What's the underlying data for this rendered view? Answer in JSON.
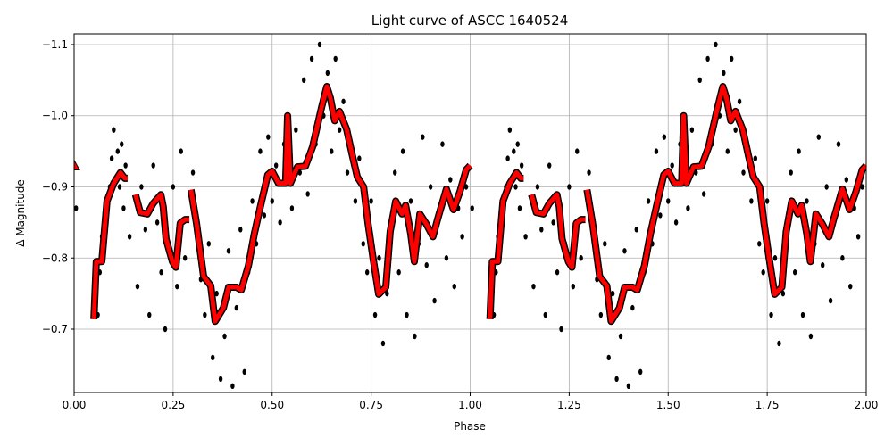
{
  "chart_data": {
    "type": "scatter",
    "title": "Light curve of ASCC 1640524",
    "xlabel": "Phase",
    "ylabel": "Δ Magnitude",
    "xlim": [
      0,
      2
    ],
    "ylim": [
      -1.115,
      -0.611
    ],
    "invert_y": true,
    "grid": true,
    "xticks": [
      {
        "value": 0,
        "label": "0.00"
      },
      {
        "value": 0.25,
        "label": "0.25"
      },
      {
        "value": 0.5,
        "label": "0.50"
      },
      {
        "value": 0.75,
        "label": "0.75"
      },
      {
        "value": 1,
        "label": "1.00"
      },
      {
        "value": 1.25,
        "label": "1.25"
      },
      {
        "value": 1.5,
        "label": "1.50"
      },
      {
        "value": 1.75,
        "label": "1.75"
      },
      {
        "value": 2,
        "label": "2.00"
      }
    ],
    "yticks": [
      {
        "value": -1.1,
        "label": "−1.1"
      },
      {
        "value": -1.0,
        "label": "−1.0"
      },
      {
        "value": -0.9,
        "label": "−0.9"
      },
      {
        "value": -0.8,
        "label": "−0.8"
      },
      {
        "value": -0.7,
        "label": "−0.7"
      }
    ],
    "points": {
      "color": "#000000",
      "x": [
        0.005,
        0.06,
        0.065,
        0.07,
        0.08,
        0.09,
        0.095,
        0.1,
        0.11,
        0.115,
        0.12,
        0.125,
        0.13,
        0.14,
        0.16,
        0.17,
        0.18,
        0.19,
        0.2,
        0.21,
        0.22,
        0.23,
        0.24,
        0.25,
        0.26,
        0.27,
        0.28,
        0.3,
        0.31,
        0.32,
        0.33,
        0.34,
        0.35,
        0.36,
        0.37,
        0.38,
        0.39,
        0.4,
        0.41,
        0.42,
        0.43,
        0.44,
        0.45,
        0.46,
        0.47,
        0.48,
        0.49,
        0.5,
        0.51,
        0.52,
        0.53,
        0.55,
        0.56,
        0.57,
        0.58,
        0.59,
        0.6,
        0.61,
        0.62,
        0.63,
        0.64,
        0.65,
        0.66,
        0.67,
        0.68,
        0.69,
        0.7,
        0.71,
        0.72,
        0.73,
        0.74,
        0.75,
        0.76,
        0.77,
        0.78,
        0.79,
        0.8,
        0.81,
        0.82,
        0.83,
        0.84,
        0.85,
        0.86,
        0.87,
        0.88,
        0.89,
        0.9,
        0.91,
        0.92,
        0.93,
        0.94,
        0.95,
        0.96,
        0.97,
        0.98,
        0.99,
        1.005,
        1.06,
        1.065,
        1.07,
        1.08,
        1.09,
        1.095,
        1.1,
        1.11,
        1.115,
        1.12,
        1.125,
        1.13,
        1.14,
        1.16,
        1.17,
        1.18,
        1.19,
        1.2,
        1.21,
        1.22,
        1.23,
        1.24,
        1.25,
        1.26,
        1.27,
        1.28,
        1.3,
        1.31,
        1.32,
        1.33,
        1.34,
        1.35,
        1.36,
        1.37,
        1.38,
        1.39,
        1.4,
        1.41,
        1.42,
        1.43,
        1.44,
        1.45,
        1.46,
        1.47,
        1.48,
        1.49,
        1.5,
        1.51,
        1.52,
        1.53,
        1.55,
        1.56,
        1.57,
        1.58,
        1.59,
        1.6,
        1.61,
        1.62,
        1.63,
        1.64,
        1.65,
        1.66,
        1.67,
        1.68,
        1.69,
        1.7,
        1.71,
        1.72,
        1.73,
        1.74,
        1.75,
        1.76,
        1.77,
        1.78,
        1.79,
        1.8,
        1.81,
        1.82,
        1.83,
        1.84,
        1.85,
        1.86,
        1.87,
        1.88,
        1.89,
        1.9,
        1.91,
        1.92,
        1.93,
        1.94,
        1.95,
        1.96,
        1.97,
        1.98,
        1.99
      ],
      "y": [
        -0.87,
        -0.72,
        -0.78,
        -0.83,
        -0.86,
        -0.9,
        -0.94,
        -0.98,
        -0.95,
        -0.9,
        -0.96,
        -0.87,
        -0.93,
        -0.83,
        -0.76,
        -0.9,
        -0.84,
        -0.72,
        -0.93,
        -0.85,
        -0.78,
        -0.7,
        -0.82,
        -0.9,
        -0.76,
        -0.95,
        -0.8,
        -0.92,
        -0.83,
        -0.77,
        -0.72,
        -0.82,
        -0.66,
        -0.75,
        -0.63,
        -0.69,
        -0.81,
        -0.62,
        -0.73,
        -0.84,
        -0.64,
        -0.78,
        -0.88,
        -0.82,
        -0.95,
        -0.86,
        -0.97,
        -0.88,
        -0.93,
        -0.85,
        -0.96,
        -0.87,
        -0.98,
        -0.92,
        -1.05,
        -0.89,
        -1.08,
        -0.96,
        -1.1,
        -1.0,
        -1.06,
        -0.95,
        -1.08,
        -0.98,
        -1.02,
        -0.92,
        -0.96,
        -0.88,
        -0.94,
        -0.82,
        -0.78,
        -0.88,
        -0.72,
        -0.8,
        -0.68,
        -0.75,
        -0.85,
        -0.92,
        -0.78,
        -0.95,
        -0.72,
        -0.88,
        -0.69,
        -0.82,
        -0.97,
        -0.79,
        -0.9,
        -0.74,
        -0.86,
        -0.96,
        -0.8,
        -0.91,
        -0.76,
        -0.87,
        -0.83,
        -0.9,
        -0.87,
        -0.72,
        -0.78,
        -0.83,
        -0.86,
        -0.9,
        -0.94,
        -0.98,
        -0.95,
        -0.9,
        -0.96,
        -0.87,
        -0.93,
        -0.83,
        -0.76,
        -0.9,
        -0.84,
        -0.72,
        -0.93,
        -0.85,
        -0.78,
        -0.7,
        -0.82,
        -0.9,
        -0.76,
        -0.95,
        -0.8,
        -0.92,
        -0.83,
        -0.77,
        -0.72,
        -0.82,
        -0.66,
        -0.75,
        -0.63,
        -0.69,
        -0.81,
        -0.62,
        -0.73,
        -0.84,
        -0.64,
        -0.78,
        -0.88,
        -0.82,
        -0.95,
        -0.86,
        -0.97,
        -0.88,
        -0.93,
        -0.85,
        -0.96,
        -0.87,
        -0.98,
        -0.92,
        -1.05,
        -0.89,
        -1.08,
        -0.96,
        -1.1,
        -1.0,
        -1.06,
        -0.95,
        -1.08,
        -0.98,
        -1.02,
        -0.92,
        -0.96,
        -0.88,
        -0.94,
        -0.82,
        -0.78,
        -0.88,
        -0.72,
        -0.8,
        -0.68,
        -0.75,
        -0.85,
        -0.92,
        -0.78,
        -0.95,
        -0.72,
        -0.88,
        -0.69,
        -0.82,
        -0.97,
        -0.79,
        -0.9,
        -0.74,
        -0.86,
        -0.96,
        -0.8,
        -0.91,
        -0.76,
        -0.87,
        -0.83,
        -0.9
      ]
    },
    "curve": {
      "color": "#ff0000",
      "edgecolor": "#000000",
      "x": [
        0,
        null,
        0.05,
        0.056,
        0.07,
        0.083,
        0.1,
        0.117,
        0.128,
        0.135,
        null,
        0.155,
        0.167,
        0.185,
        0.2,
        0.219,
        0.225,
        0.232,
        0.248,
        0.257,
        0.268,
        0.28,
        0.291,
        null,
        0.295,
        0.309,
        0.327,
        0.345,
        0.356,
        0.377,
        0.39,
        0.41,
        0.422,
        0.44,
        0.455,
        0.471,
        0.489,
        0.5,
        0.516,
        0.534,
        0.539,
        0.546,
        0.564,
        0.584,
        0.602,
        0.625,
        0.638,
        0.647,
        0.658,
        0.67,
        0.688,
        0.703,
        0.715,
        0.731,
        0.742,
        0.755,
        0.769,
        0.787,
        0.798,
        0.812,
        0.828,
        0.837,
        0.85,
        0.859,
        0.873,
        0.888,
        0.906,
        0.918,
        0.94,
        0.958,
        0.974,
        0.99,
        1.0,
        null,
        1.05,
        1.056,
        1.07,
        1.083,
        1.1,
        1.117,
        1.128,
        1.135,
        null,
        1.155,
        1.167,
        1.185,
        1.2,
        1.219,
        1.225,
        1.232,
        1.248,
        1.257,
        1.268,
        1.28,
        1.291,
        null,
        1.295,
        1.309,
        1.327,
        1.345,
        1.356,
        1.377,
        1.39,
        1.41,
        1.422,
        1.44,
        1.455,
        1.471,
        1.489,
        1.5,
        1.516,
        1.534,
        1.539,
        1.546,
        1.564,
        1.584,
        1.602,
        1.625,
        1.638,
        1.647,
        1.658,
        1.67,
        1.688,
        1.703,
        1.715,
        1.731,
        1.742,
        1.755,
        1.769,
        1.787,
        1.798,
        1.812,
        1.828,
        1.837,
        1.85,
        1.859,
        1.873,
        1.888,
        1.906,
        1.918,
        1.94,
        1.958,
        1.974,
        1.99,
        2.0
      ],
      "y": [
        -0.93,
        null,
        -0.714,
        -0.795,
        -0.795,
        -0.88,
        -0.905,
        -0.92,
        -0.912,
        -0.912,
        null,
        -0.889,
        -0.864,
        -0.862,
        -0.877,
        -0.889,
        -0.872,
        -0.827,
        -0.795,
        -0.787,
        -0.849,
        -0.854,
        -0.854,
        null,
        -0.896,
        -0.849,
        -0.774,
        -0.761,
        -0.711,
        -0.73,
        -0.759,
        -0.759,
        -0.755,
        -0.789,
        -0.834,
        -0.874,
        -0.917,
        -0.922,
        -0.905,
        -0.905,
        -1.0,
        -0.905,
        -0.928,
        -0.929,
        -0.956,
        -1.012,
        -1.041,
        -1.025,
        -0.993,
        -1.006,
        -0.981,
        -0.943,
        -0.914,
        -0.9,
        -0.849,
        -0.799,
        -0.749,
        -0.759,
        -0.837,
        -0.88,
        -0.862,
        -0.874,
        -0.834,
        -0.795,
        -0.862,
        -0.849,
        -0.83,
        -0.855,
        -0.897,
        -0.868,
        -0.893,
        -0.924,
        -0.93,
        null,
        -0.714,
        -0.795,
        -0.795,
        -0.88,
        -0.905,
        -0.92,
        -0.912,
        -0.912,
        null,
        -0.889,
        -0.864,
        -0.862,
        -0.877,
        -0.889,
        -0.872,
        -0.827,
        -0.795,
        -0.787,
        -0.849,
        -0.854,
        -0.854,
        null,
        -0.896,
        -0.849,
        -0.774,
        -0.761,
        -0.711,
        -0.73,
        -0.759,
        -0.759,
        -0.755,
        -0.789,
        -0.834,
        -0.874,
        -0.917,
        -0.922,
        -0.905,
        -0.905,
        -1.0,
        -0.905,
        -0.928,
        -0.929,
        -0.956,
        -1.012,
        -1.041,
        -1.025,
        -0.993,
        -1.006,
        -0.981,
        -0.943,
        -0.914,
        -0.9,
        -0.849,
        -0.799,
        -0.749,
        -0.759,
        -0.837,
        -0.88,
        -0.862,
        -0.874,
        -0.834,
        -0.795,
        -0.862,
        -0.849,
        -0.83,
        -0.855,
        -0.897,
        -0.868,
        -0.893,
        -0.924,
        -0.93
      ]
    }
  }
}
